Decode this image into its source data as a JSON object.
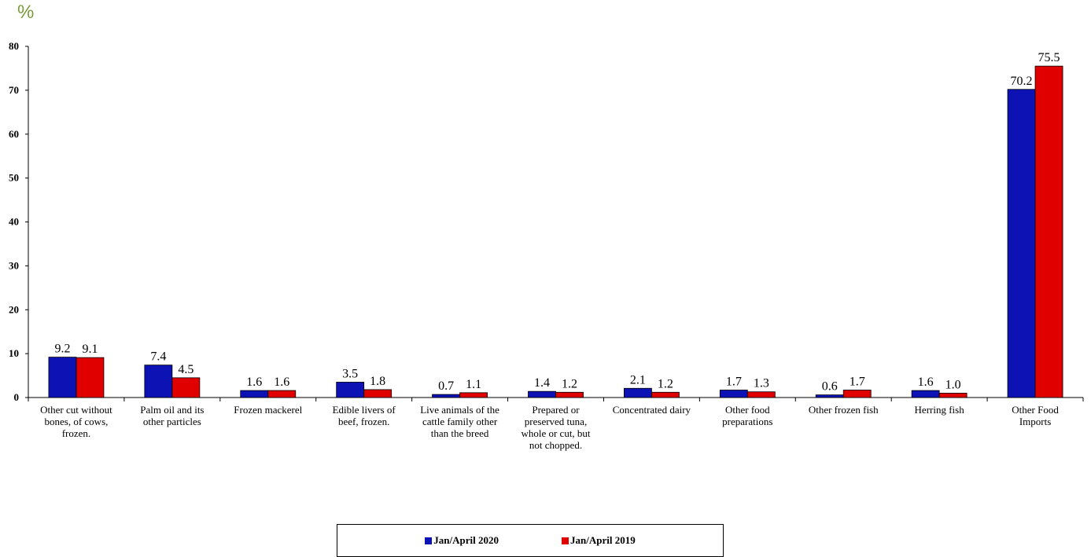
{
  "unit_label": "%",
  "colors": {
    "series_2020": "#0c12b4",
    "series_2019": "#e00000",
    "unit_label": "#7a9a3a"
  },
  "chart_data": {
    "type": "bar",
    "title": "",
    "xlabel": "",
    "ylabel": "%",
    "ylim": [
      0,
      80
    ],
    "yticks": [
      "0",
      "10",
      "20",
      "30",
      "40",
      "50",
      "60",
      "70",
      "80"
    ],
    "grid": false,
    "legend_position": "bottom",
    "categories": [
      [
        "Other cut without",
        "bones, of cows,",
        "frozen."
      ],
      [
        "Palm oil and its",
        "other particles"
      ],
      [
        "Frozen mackerel"
      ],
      [
        "Edible livers of",
        "beef, frozen."
      ],
      [
        "Live animals of the",
        "cattle family other",
        "than the breed"
      ],
      [
        "Prepared or",
        "preserved tuna,",
        "whole or cut, but",
        "not chopped."
      ],
      [
        "Concentrated dairy"
      ],
      [
        "Other food",
        "preparations"
      ],
      [
        "Other frozen fish"
      ],
      [
        "Herring fish"
      ],
      [
        "Other Food",
        "Imports"
      ]
    ],
    "series": [
      {
        "name": "Jan/April  2020",
        "color": "#0c12b4",
        "values": [
          9.2,
          7.4,
          1.6,
          3.5,
          0.7,
          1.4,
          2.1,
          1.7,
          0.6,
          1.6,
          70.2
        ],
        "labels": [
          "9.2",
          "7.4",
          "1.6",
          "3.5",
          "0.7",
          "1.4",
          "2.1",
          "1.7",
          "0.6",
          "1.6",
          "70.2"
        ]
      },
      {
        "name": "Jan/April 2019",
        "color": "#e00000",
        "values": [
          9.1,
          4.5,
          1.6,
          1.8,
          1.1,
          1.2,
          1.2,
          1.3,
          1.7,
          1.0,
          75.5
        ],
        "labels": [
          "9.1",
          "4.5",
          "1.6",
          "1.8",
          "1.1",
          "1.2",
          "1.2",
          "1.3",
          "1.7",
          "1.0",
          "75.5"
        ]
      }
    ]
  }
}
